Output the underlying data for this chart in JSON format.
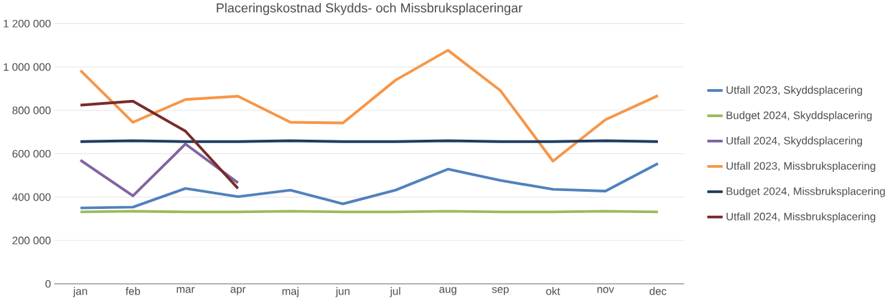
{
  "chart_data": {
    "type": "line",
    "title": "Placeringskostnad Skydds- och Missbruksplaceringar",
    "categories": [
      "jan",
      "feb",
      "mar",
      "apr",
      "maj",
      "jun",
      "jul",
      "aug",
      "sep",
      "okt",
      "nov",
      "dec"
    ],
    "series": [
      {
        "name": "Utfall 2023, Skyddsplacering",
        "color": "#4f81bd",
        "values": [
          350000,
          354000,
          440000,
          402000,
          432000,
          369000,
          432000,
          529000,
          477000,
          436000,
          428000,
          555000
        ]
      },
      {
        "name": "Budget 2024, Skyddsplacering",
        "color": "#9bbb59",
        "values": [
          332000,
          335000,
          332000,
          332000,
          335000,
          332000,
          332000,
          335000,
          332000,
          332000,
          335000,
          332000
        ]
      },
      {
        "name": "Utfall 2024, Skyddsplacering",
        "color": "#8064a2",
        "values": [
          570000,
          406000,
          645000,
          466000,
          null,
          null,
          null,
          null,
          null,
          null,
          null,
          null
        ]
      },
      {
        "name": "Utfall 2023, Missbruksplacering",
        "color": "#f79646",
        "values": [
          984000,
          745000,
          850000,
          865000,
          745000,
          742000,
          939000,
          1077000,
          891000,
          566000,
          757000,
          868000
        ]
      },
      {
        "name": "Budget 2024, Missbruksplacering",
        "color": "#1f3d63",
        "values": [
          656000,
          660000,
          656000,
          656000,
          660000,
          656000,
          656000,
          660000,
          656000,
          656000,
          660000,
          656000
        ]
      },
      {
        "name": "Utfall 2024, Missbruksplacering",
        "color": "#772c2a",
        "values": [
          824000,
          842000,
          704000,
          440000,
          null,
          null,
          null,
          null,
          null,
          null,
          null,
          null
        ]
      }
    ],
    "ylim": [
      0,
      1200000
    ],
    "yticks": [
      {
        "value": 0,
        "label": "0"
      },
      {
        "value": 200000,
        "label": "200 000"
      },
      {
        "value": 400000,
        "label": "400 000"
      },
      {
        "value": 600000,
        "label": "600 000"
      },
      {
        "value": 800000,
        "label": "800 000"
      },
      {
        "value": 1000000,
        "label": "1 000 000"
      },
      {
        "value": 1200000,
        "label": "1 200 000"
      }
    ],
    "grid": "y",
    "legend": "right",
    "marker": "none",
    "line_style": "solid"
  }
}
